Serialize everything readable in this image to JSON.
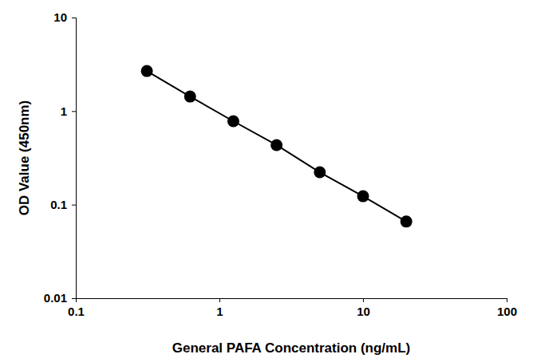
{
  "chart_data": {
    "type": "line",
    "marker": "circle",
    "color": "#000000",
    "x_label": "General PAFA Concentration (ng/mL)",
    "y_label": "OD Value (450nm)",
    "x": [
      0.3125,
      0.625,
      1.25,
      2.5,
      5,
      10,
      20
    ],
    "values": [
      2.68,
      1.43,
      0.78,
      0.433,
      0.222,
      0.123,
      0.066
    ],
    "log": true,
    "grid": false,
    "xlim": [
      0.1,
      100
    ],
    "xticks": [
      0.1,
      1,
      10,
      100
    ],
    "ylim": [
      0.01,
      10
    ],
    "yticks": [
      0.01,
      0.1,
      1,
      10
    ]
  }
}
